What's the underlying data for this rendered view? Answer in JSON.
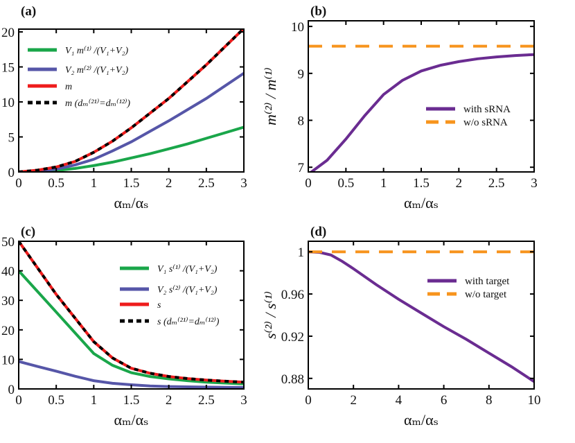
{
  "chart_data": [
    {
      "panel": "(a)",
      "type": "line",
      "xlabel": "αₘ/αₛ",
      "ylabel": "",
      "xlim": [
        0,
        3
      ],
      "ylim": [
        0,
        20.4
      ],
      "xticks": [
        "0",
        "0.5",
        "1",
        "1.5",
        "2",
        "2.5",
        "3"
      ],
      "xtickvals": [
        0,
        0.5,
        1,
        1.5,
        2,
        2.5,
        3
      ],
      "yticks": [
        "0",
        "5",
        "10",
        "15",
        "20"
      ],
      "ytickvals": [
        0,
        5,
        10,
        15,
        20
      ],
      "legend_position": "top-left",
      "series": [
        {
          "name": "V₁ m⁽¹⁾ /(V₁+V₂)",
          "color": "#1aa64a",
          "style": "solid",
          "x": [
            0,
            0.25,
            0.5,
            0.75,
            1,
            1.25,
            1.5,
            1.75,
            2,
            2.25,
            2.5,
            2.75,
            3
          ],
          "y": [
            0,
            0.05,
            0.2,
            0.5,
            0.9,
            1.4,
            2.0,
            2.6,
            3.3,
            4.0,
            4.8,
            5.6,
            6.4
          ]
        },
        {
          "name": "V₂ m⁽²⁾ /(V₁+V₂)",
          "color": "#5656a8",
          "style": "solid",
          "x": [
            0,
            0.25,
            0.5,
            0.75,
            1,
            1.25,
            1.5,
            1.75,
            2,
            2.25,
            2.5,
            2.75,
            3
          ],
          "y": [
            0,
            0.1,
            0.4,
            1.0,
            1.8,
            3.0,
            4.3,
            5.8,
            7.3,
            8.9,
            10.5,
            12.3,
            14.1
          ]
        },
        {
          "name": "m",
          "color": "#ee1c1c",
          "style": "solid",
          "x": [
            0,
            0.25,
            0.5,
            0.75,
            1,
            1.25,
            1.5,
            1.75,
            2,
            2.25,
            2.5,
            2.75,
            3
          ],
          "y": [
            0,
            0.25,
            0.7,
            1.5,
            2.8,
            4.4,
            6.3,
            8.4,
            10.5,
            12.9,
            15.3,
            17.9,
            20.5
          ]
        },
        {
          "name": "m  (dₘ⁽²¹⁾=dₘ⁽¹²⁾)",
          "color": "#000000",
          "style": "dashed",
          "x": [
            0,
            0.25,
            0.5,
            0.75,
            1,
            1.25,
            1.5,
            1.75,
            2,
            2.25,
            2.5,
            2.75,
            3
          ],
          "y": [
            0,
            0.25,
            0.7,
            1.5,
            2.8,
            4.4,
            6.3,
            8.4,
            10.5,
            12.9,
            15.3,
            17.9,
            20.5
          ]
        }
      ]
    },
    {
      "panel": "(b)",
      "type": "line",
      "xlabel": "αₘ/αₛ",
      "ylabel": "m⁽²⁾ / m⁽¹⁾",
      "xlim": [
        0,
        3
      ],
      "ylim": [
        6.9,
        10.12
      ],
      "xticks": [
        "0",
        "0.5",
        "1",
        "1.5",
        "2",
        "2.5",
        "3"
      ],
      "xtickvals": [
        0,
        0.5,
        1,
        1.5,
        2,
        2.5,
        3
      ],
      "yticks": [
        "7",
        "8",
        "9",
        "10"
      ],
      "ytickvals": [
        7,
        8,
        9,
        10
      ],
      "legend_position": "center-right",
      "series": [
        {
          "name": "with sRNA",
          "color": "#6a2c91",
          "style": "solid",
          "x": [
            0,
            0.25,
            0.5,
            0.75,
            1,
            1.25,
            1.5,
            1.75,
            2,
            2.25,
            2.5,
            2.75,
            3
          ],
          "y": [
            6.85,
            7.15,
            7.6,
            8.1,
            8.55,
            8.85,
            9.05,
            9.17,
            9.25,
            9.31,
            9.35,
            9.38,
            9.4
          ]
        },
        {
          "name": "w/o sRNA",
          "color": "#f7941d",
          "style": "dashed",
          "x": [
            0,
            3
          ],
          "y": [
            9.58,
            9.58
          ]
        }
      ]
    },
    {
      "panel": "(c)",
      "type": "line",
      "xlabel": "αₘ/αₛ",
      "ylabel": "",
      "xlim": [
        0,
        3
      ],
      "ylim": [
        0,
        50
      ],
      "xticks": [
        "0",
        "0.5",
        "1",
        "1.5",
        "2",
        "2.5",
        "3"
      ],
      "xtickvals": [
        0,
        0.5,
        1,
        1.5,
        2,
        2.5,
        3
      ],
      "yticks": [
        "0",
        "10",
        "20",
        "30",
        "40",
        "50"
      ],
      "ytickvals": [
        0,
        10,
        20,
        30,
        40,
        50
      ],
      "legend_position": "top-right",
      "series": [
        {
          "name": "V₁ s⁽¹⁾ /(V₁+V₂)",
          "color": "#1aa64a",
          "style": "solid",
          "x": [
            0,
            0.25,
            0.5,
            0.75,
            1,
            1.25,
            1.5,
            1.75,
            2,
            2.25,
            2.5,
            2.75,
            3
          ],
          "y": [
            40,
            33,
            26,
            19,
            12,
            8,
            5.5,
            4.2,
            3.4,
            2.8,
            2.3,
            2.0,
            1.7
          ]
        },
        {
          "name": "V₂ s⁽²⁾ /(V₁+V₂)",
          "color": "#5656a8",
          "style": "solid",
          "x": [
            0,
            0.25,
            0.5,
            0.75,
            1,
            1.25,
            1.5,
            1.75,
            2,
            2.25,
            2.5,
            2.75,
            3
          ],
          "y": [
            9.3,
            7.6,
            6.0,
            4.3,
            2.8,
            1.9,
            1.4,
            1.0,
            0.8,
            0.7,
            0.6,
            0.55,
            0.5
          ]
        },
        {
          "name": "s",
          "color": "#ee1c1c",
          "style": "solid",
          "x": [
            0,
            0.25,
            0.5,
            0.75,
            1,
            1.25,
            1.5,
            1.75,
            2,
            2.25,
            2.5,
            2.75,
            3
          ],
          "y": [
            50,
            41,
            32,
            24,
            16,
            10.5,
            7,
            5.3,
            4.2,
            3.5,
            3.0,
            2.6,
            2.3
          ]
        },
        {
          "name": "s  (dₘ⁽²¹⁾=dₘ⁽¹²⁾)",
          "color": "#000000",
          "style": "dashed",
          "x": [
            0,
            0.25,
            0.5,
            0.75,
            1,
            1.25,
            1.5,
            1.75,
            2,
            2.25,
            2.5,
            2.75,
            3
          ],
          "y": [
            50,
            41,
            32,
            24,
            16,
            10.5,
            7,
            5.3,
            4.2,
            3.5,
            3.0,
            2.6,
            2.3
          ]
        }
      ]
    },
    {
      "panel": "(d)",
      "type": "line",
      "xlabel": "αₘ/αₛ",
      "ylabel": "s⁽²⁾ / s⁽¹⁾",
      "xlim": [
        0,
        10
      ],
      "ylim": [
        0.87,
        1.01
      ],
      "xticks": [
        "0",
        "2",
        "4",
        "6",
        "8",
        "10"
      ],
      "xtickvals": [
        0,
        2,
        4,
        6,
        8,
        10
      ],
      "yticks": [
        "0.88",
        "0.92",
        "0.96",
        "1"
      ],
      "ytickvals": [
        0.88,
        0.92,
        0.96,
        1
      ],
      "legend_position": "top-right",
      "series": [
        {
          "name": "with target",
          "color": "#6a2c91",
          "style": "solid",
          "x": [
            0,
            0.5,
            1,
            1.5,
            2,
            3,
            4,
            5,
            6,
            7,
            8,
            9,
            10
          ],
          "y": [
            1.0,
            0.9995,
            0.997,
            0.991,
            0.984,
            0.969,
            0.955,
            0.942,
            0.929,
            0.917,
            0.904,
            0.891,
            0.877
          ]
        },
        {
          "name": "w/o target",
          "color": "#f7941d",
          "style": "dashed",
          "x": [
            0,
            10
          ],
          "y": [
            1.0,
            1.0
          ]
        }
      ]
    }
  ]
}
